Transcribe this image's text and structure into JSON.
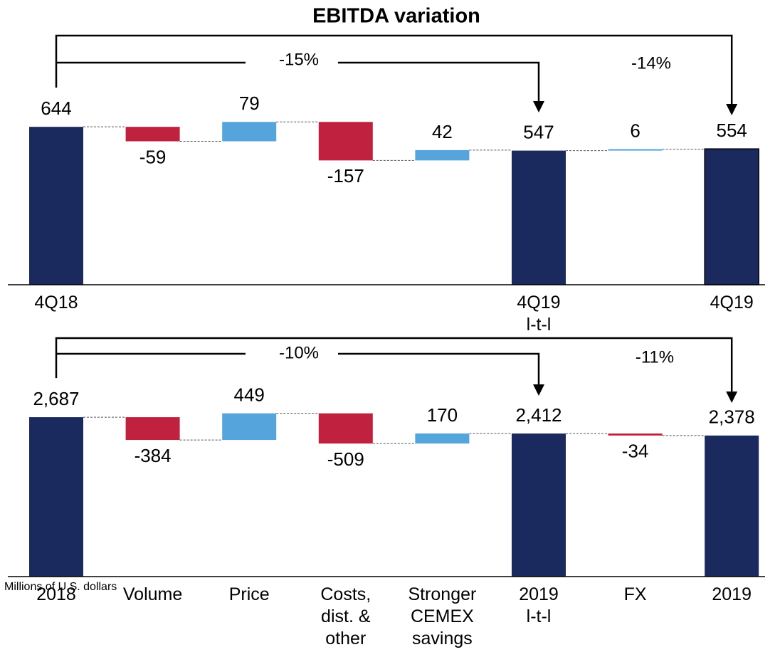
{
  "chart_data": [
    {
      "type": "waterfall",
      "title": "EBITDA variation",
      "categories": [
        "4Q18",
        null,
        null,
        null,
        null,
        "4Q19\nl-t-l",
        null,
        "4Q19"
      ],
      "values": [
        644,
        -59,
        79,
        -157,
        42,
        547,
        6,
        554
      ],
      "is_total": [
        true,
        false,
        false,
        false,
        false,
        true,
        false,
        true
      ],
      "colors": {
        "total": "#1b2a5e",
        "positive": "#55a5dc",
        "negative": "#c0213e"
      },
      "ylim": [
        0,
        900
      ],
      "annotations": [
        "-15%",
        "-14%"
      ]
    },
    {
      "type": "waterfall",
      "categories": [
        "2018",
        "Volume",
        "Price",
        "Costs,\ndist. &\nother",
        "Stronger\nCEMEX\nsavings",
        "2019\nl-t-l",
        "FX",
        "2019"
      ],
      "values": [
        2687,
        -384,
        449,
        -509,
        170,
        2412,
        -34,
        2378
      ],
      "value_labels": [
        "2,687",
        "-384",
        "449",
        "-509",
        "170",
        "2,412",
        "-34",
        "2,378"
      ],
      "is_total": [
        true,
        false,
        false,
        false,
        false,
        true,
        false,
        true
      ],
      "colors": {
        "total": "#1b2a5e",
        "positive": "#55a5dc",
        "negative": "#c0213e"
      },
      "ylim": [
        0,
        3600
      ],
      "annotations": [
        "-10%",
        "-11%"
      ],
      "note": "Millions of U.S. dollars"
    }
  ]
}
